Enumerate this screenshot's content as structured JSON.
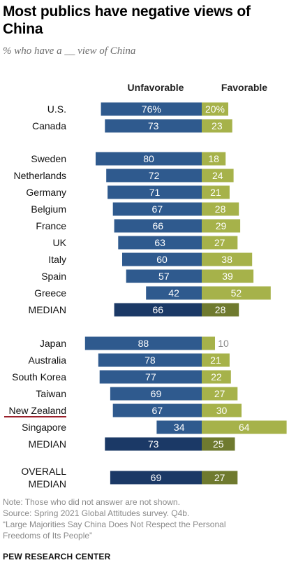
{
  "title": "Most publics have negative views of China",
  "subtitle": "% who have a __ view of China",
  "notes": {
    "note": "Note: Those who did not answer are not shown.",
    "source": "Source: Spring 2021 Global Attitudes survey. Q4b.",
    "report_line1": "“Large Majorities Say China Does Not Respect the Personal",
    "report_line2": "Freedoms of Its People”"
  },
  "credit": "PEW RESEARCH CENTER",
  "colors": {
    "unfavorable": "#2f5a8e",
    "favorable": "#a6b24a",
    "unfavorable_median": "#1b3966",
    "favorable_median": "#6f7a2f",
    "highlight_underline": "#9a1f2a"
  },
  "chart_data": {
    "type": "bar",
    "orientation": "horizontal-diverging",
    "series_headers": [
      "Unfavorable",
      "Favorable"
    ],
    "rows": [
      {
        "label": "U.S.",
        "unfavorable": 76,
        "favorable": 20,
        "unfavorable_label": "76%",
        "favorable_label": "20%"
      },
      {
        "label": "Canada",
        "unfavorable": 73,
        "favorable": 23
      },
      {
        "label": "Sweden",
        "unfavorable": 80,
        "favorable": 18
      },
      {
        "label": "Netherlands",
        "unfavorable": 72,
        "favorable": 24
      },
      {
        "label": "Germany",
        "unfavorable": 71,
        "favorable": 21
      },
      {
        "label": "Belgium",
        "unfavorable": 67,
        "favorable": 28
      },
      {
        "label": "France",
        "unfavorable": 66,
        "favorable": 29
      },
      {
        "label": "UK",
        "unfavorable": 63,
        "favorable": 27
      },
      {
        "label": "Italy",
        "unfavorable": 60,
        "favorable": 38
      },
      {
        "label": "Spain",
        "unfavorable": 57,
        "favorable": 39
      },
      {
        "label": "Greece",
        "unfavorable": 42,
        "favorable": 52
      },
      {
        "label": "MEDIAN",
        "unfavorable": 66,
        "favorable": 28,
        "median": true
      },
      {
        "label": "Japan",
        "unfavorable": 88,
        "favorable": 10
      },
      {
        "label": "Australia",
        "unfavorable": 78,
        "favorable": 21
      },
      {
        "label": "South Korea",
        "unfavorable": 77,
        "favorable": 22
      },
      {
        "label": "Taiwan",
        "unfavorable": 69,
        "favorable": 27
      },
      {
        "label": "New Zealand",
        "unfavorable": 67,
        "favorable": 30,
        "underlined": true
      },
      {
        "label": "Singapore",
        "unfavorable": 34,
        "favorable": 64
      },
      {
        "label": "MEDIAN",
        "unfavorable": 73,
        "favorable": 25,
        "median": true
      },
      {
        "label": "OVERALL",
        "label2": "MEDIAN",
        "unfavorable": 69,
        "favorable": 27,
        "median": true
      }
    ]
  }
}
